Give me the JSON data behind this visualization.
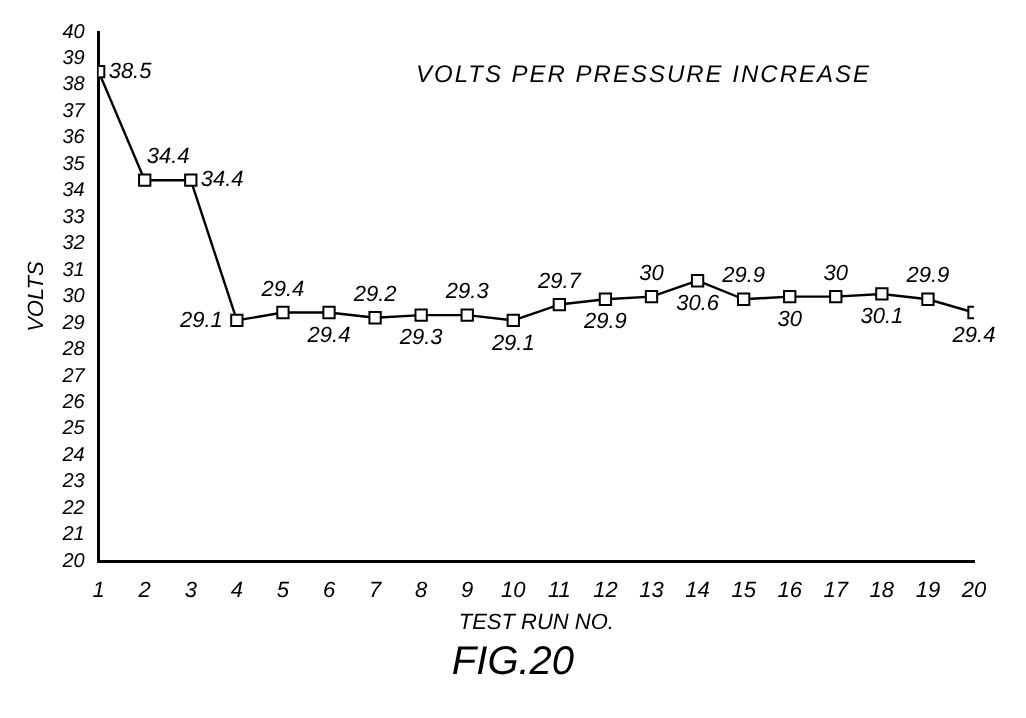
{
  "chart_data": {
    "type": "line",
    "title": "VOLTS PER PRESSURE INCREASE",
    "xlabel": "TEST RUN NO.",
    "ylabel": "VOLTS",
    "annotations": [
      "FIG.20"
    ],
    "x": [
      1,
      2,
      3,
      4,
      5,
      6,
      7,
      8,
      9,
      10,
      11,
      12,
      13,
      14,
      15,
      16,
      17,
      18,
      19,
      20
    ],
    "series": [
      {
        "color": "#000000",
        "values": [
          38.5,
          34.4,
          34.4,
          29.1,
          29.4,
          29.4,
          29.2,
          29.3,
          29.3,
          29.1,
          29.7,
          29.9,
          30,
          30.6,
          29.9,
          30,
          30,
          30.1,
          29.9,
          29.4
        ]
      }
    ],
    "xlim": [
      1,
      20
    ],
    "xticks": [
      1,
      2,
      3,
      4,
      5,
      6,
      7,
      8,
      9,
      10,
      11,
      12,
      13,
      14,
      15,
      16,
      17,
      18,
      19,
      20
    ],
    "ylim": [
      20,
      40
    ],
    "yticks": [
      20,
      21,
      22,
      23,
      24,
      25,
      26,
      27,
      28,
      29,
      30,
      31,
      32,
      33,
      34,
      35,
      36,
      37,
      38,
      39,
      40
    ],
    "grid": false,
    "legend": false,
    "marker": "square",
    "line_style": "solid",
    "data_labels": true
  }
}
